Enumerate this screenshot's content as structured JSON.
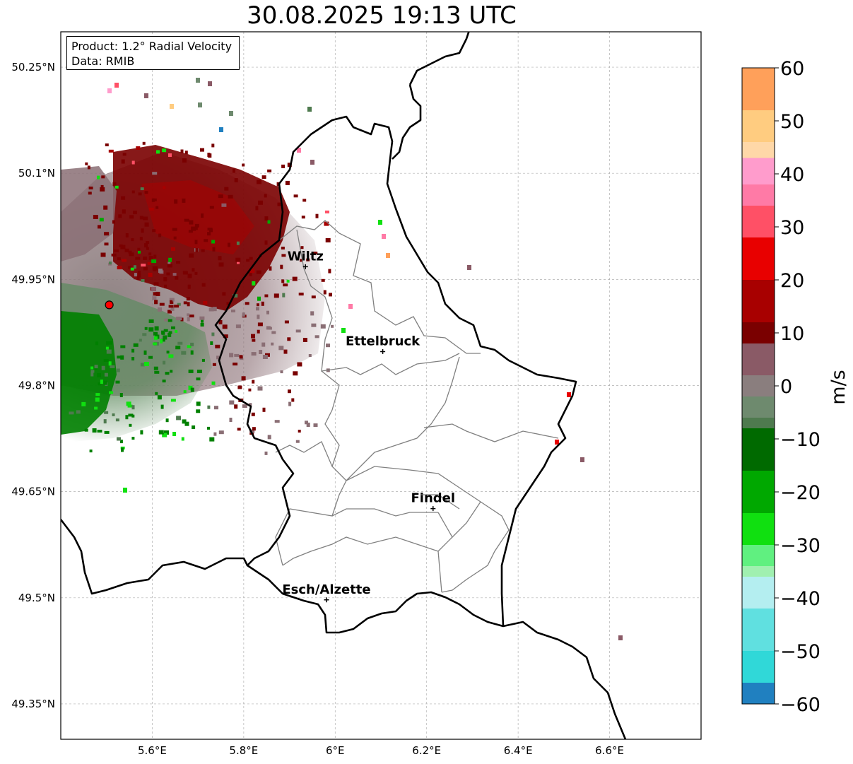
{
  "title": "30.08.2025 19:13 UTC",
  "info": {
    "product": "Product: 1.2° Radial Velocity",
    "source": "Data: RMIB"
  },
  "map": {
    "lon_range": [
      5.4,
      6.8
    ],
    "lat_range": [
      49.3,
      50.3
    ],
    "lon_ticks": [
      {
        "value": 5.6,
        "label": "5.6°E"
      },
      {
        "value": 5.8,
        "label": "5.8°E"
      },
      {
        "value": 6.0,
        "label": "6°E"
      },
      {
        "value": 6.2,
        "label": "6.2°E"
      },
      {
        "value": 6.4,
        "label": "6.4°E"
      },
      {
        "value": 6.6,
        "label": "6.6°E"
      }
    ],
    "lat_ticks": [
      {
        "value": 50.25,
        "label": "50.25°N"
      },
      {
        "value": 50.1,
        "label": "50.1°N"
      },
      {
        "value": 49.95,
        "label": "49.95°N"
      },
      {
        "value": 49.8,
        "label": "49.8°N"
      },
      {
        "value": 49.65,
        "label": "49.65°N"
      },
      {
        "value": 49.5,
        "label": "49.5°N"
      },
      {
        "value": 49.35,
        "label": "49.35°N"
      }
    ],
    "radar_site": {
      "lon": 5.506,
      "lat": 49.914
    },
    "cities": [
      {
        "name": "Wiltz",
        "lon": 5.935,
        "lat": 49.968
      },
      {
        "name": "Ettelbruck",
        "lon": 6.104,
        "lat": 49.848
      },
      {
        "name": "Findel",
        "lon": 6.214,
        "lat": 49.626
      },
      {
        "name": "Esch/Alzette",
        "lon": 5.981,
        "lat": 49.497
      }
    ]
  },
  "colorbar": {
    "label": "m/s",
    "range": [
      -60,
      60
    ],
    "ticks": [
      {
        "value": 60,
        "label": "60"
      },
      {
        "value": 50,
        "label": "50"
      },
      {
        "value": 40,
        "label": "40"
      },
      {
        "value": 30,
        "label": "30"
      },
      {
        "value": 20,
        "label": "20"
      },
      {
        "value": 10,
        "label": "10"
      },
      {
        "value": 0,
        "label": "0"
      },
      {
        "value": -10,
        "label": "−10"
      },
      {
        "value": -20,
        "label": "−20"
      },
      {
        "value": -30,
        "label": "−30"
      },
      {
        "value": -40,
        "label": "−40"
      },
      {
        "value": -50,
        "label": "−50"
      },
      {
        "value": -60,
        "label": "−60"
      }
    ],
    "stops": [
      {
        "from": 52,
        "to": 60,
        "color": "#ffa05a"
      },
      {
        "from": 46,
        "to": 52,
        "color": "#ffcc80"
      },
      {
        "from": 43,
        "to": 46,
        "color": "#ffd8a8"
      },
      {
        "from": 38,
        "to": 43,
        "color": "#ff9ccc"
      },
      {
        "from": 34,
        "to": 38,
        "color": "#ff7aa6"
      },
      {
        "from": 28,
        "to": 34,
        "color": "#ff5066"
      },
      {
        "from": 20,
        "to": 28,
        "color": "#e80000"
      },
      {
        "from": 12,
        "to": 20,
        "color": "#a80000"
      },
      {
        "from": 8,
        "to": 12,
        "color": "#7a0000"
      },
      {
        "from": 2,
        "to": 8,
        "color": "#8a5a66"
      },
      {
        "from": -2,
        "to": 2,
        "color": "#8a7e7e"
      },
      {
        "from": -6,
        "to": -2,
        "color": "#6e8a6e"
      },
      {
        "from": -8,
        "to": -6,
        "color": "#4e7a4e"
      },
      {
        "from": -16,
        "to": -8,
        "color": "#006a00"
      },
      {
        "from": -24,
        "to": -16,
        "color": "#00a800"
      },
      {
        "from": -30,
        "to": -24,
        "color": "#10e010"
      },
      {
        "from": -34,
        "to": -30,
        "color": "#60f080"
      },
      {
        "from": -36,
        "to": -34,
        "color": "#a0f0b0"
      },
      {
        "from": -42,
        "to": -36,
        "color": "#b4eef0"
      },
      {
        "from": -50,
        "to": -42,
        "color": "#60e0e0"
      },
      {
        "from": -56,
        "to": -50,
        "color": "#30d8d8"
      },
      {
        "from": -60,
        "to": -56,
        "color": "#2080c0"
      }
    ]
  },
  "colors": {
    "approaching": "#008000",
    "receding": "#7a0000",
    "border": "#000000",
    "canton": "#808080",
    "radar_marker": "#ff0000"
  }
}
